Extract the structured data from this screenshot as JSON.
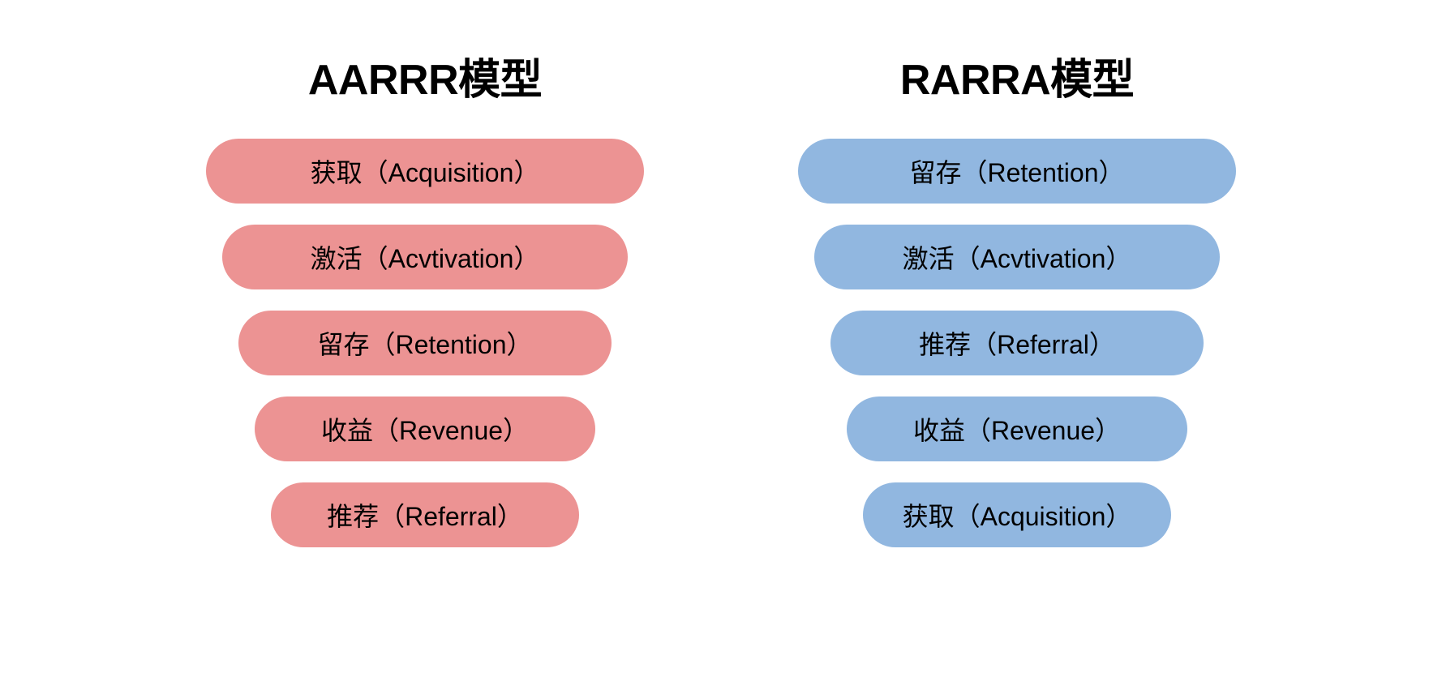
{
  "layout": {
    "background_color": "#ffffff",
    "title_color": "#000000",
    "title_fontsize": 52,
    "pills": {
      "height": 80,
      "widths": [
        540,
        500,
        460,
        420,
        380
      ],
      "label_color": "#000000",
      "label_fontsize": 32,
      "gap": 26
    }
  },
  "left": {
    "title": "AARRR模型",
    "pill_color": "#ec9393",
    "items": [
      "获取（Acquisition）",
      "激活（Acvtivation）",
      "留存（Retention）",
      "收益（Revenue）",
      "推荐（Referral）"
    ]
  },
  "right": {
    "title": "RARRA模型",
    "pill_color": "#91b7e0",
    "items": [
      "留存（Retention）",
      "激活（Acvtivation）",
      "推荐（Referral）",
      "收益（Revenue）",
      "获取（Acquisition）"
    ]
  }
}
